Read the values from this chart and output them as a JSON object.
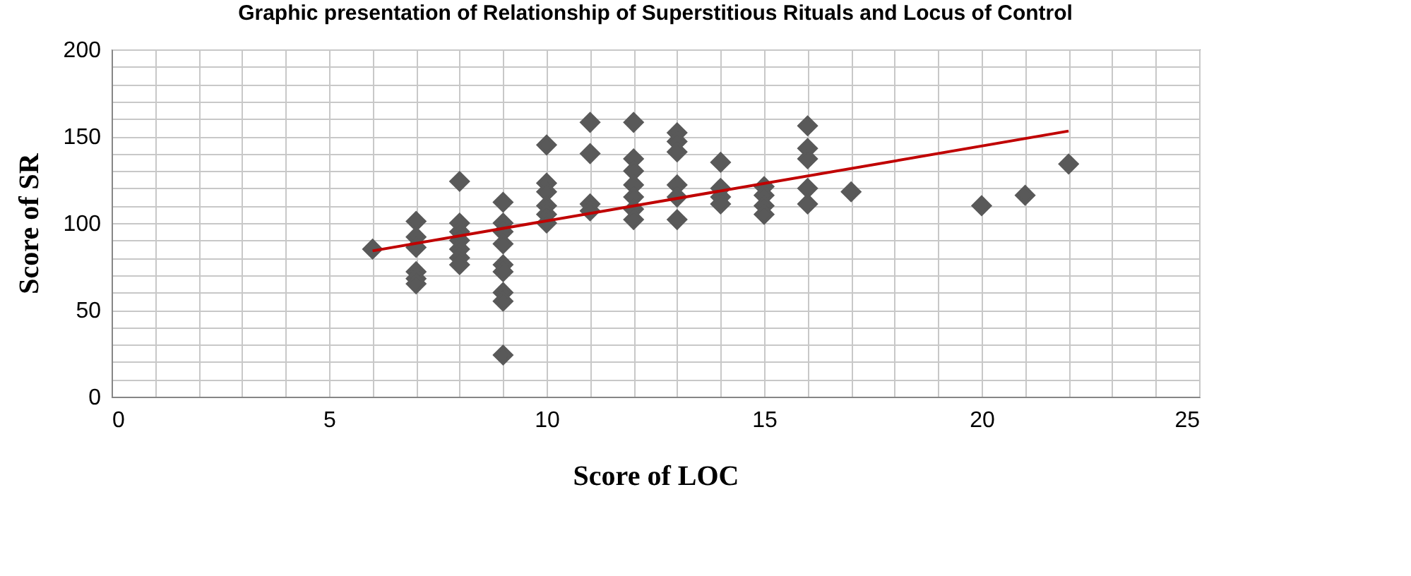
{
  "chart_data": {
    "type": "scatter",
    "title": "Graphic presentation of Relationship of Superstitious Rituals and Locus of Control",
    "xlabel": "Score of LOC",
    "ylabel": "Score of SR",
    "grid": true,
    "xlim": [
      0,
      25
    ],
    "ylim": [
      0,
      200
    ],
    "xticks": [
      0,
      {
        "value": 1,
        "label": null
      },
      {
        "value": 2,
        "label": null
      },
      {
        "value": 3,
        "label": null
      },
      {
        "value": 4,
        "label": null
      },
      5,
      {
        "value": 6,
        "label": null
      },
      {
        "value": 7,
        "label": null
      },
      {
        "value": 8,
        "label": null
      },
      {
        "value": 9,
        "label": null
      },
      10,
      {
        "value": 11,
        "label": null
      },
      {
        "value": 12,
        "label": null
      },
      {
        "value": 13,
        "label": null
      },
      {
        "value": 14,
        "label": null
      },
      15,
      {
        "value": 16,
        "label": null
      },
      {
        "value": 17,
        "label": null
      },
      {
        "value": 18,
        "label": null
      },
      {
        "value": 19,
        "label": null
      },
      20,
      {
        "value": 21,
        "label": null
      },
      {
        "value": 22,
        "label": null
      },
      {
        "value": 23,
        "label": null
      },
      {
        "value": 24,
        "label": null
      },
      25
    ],
    "yticks": [
      0,
      {
        "value": 10,
        "label": null
      },
      {
        "value": 20,
        "label": null
      },
      {
        "value": 30,
        "label": null
      },
      {
        "value": 40,
        "label": null
      },
      50,
      {
        "value": 60,
        "label": null
      },
      {
        "value": 70,
        "label": null
      },
      {
        "value": 80,
        "label": null
      },
      {
        "value": 90,
        "label": null
      },
      100,
      {
        "value": 110,
        "label": null
      },
      {
        "value": 120,
        "label": null
      },
      {
        "value": 130,
        "label": null
      },
      {
        "value": 140,
        "label": null
      },
      150,
      {
        "value": 160,
        "label": null
      },
      {
        "value": 170,
        "label": null
      },
      {
        "value": 180,
        "label": null
      },
      {
        "value": 190,
        "label": null
      },
      200
    ],
    "series": [
      {
        "marker": "diamond",
        "color": "#595959",
        "x": [
          6,
          7,
          7,
          7,
          7,
          7,
          7,
          8,
          8,
          8,
          8,
          8,
          8,
          8,
          9,
          9,
          9,
          9,
          9,
          9,
          9,
          9,
          9,
          10,
          10,
          10,
          10,
          10,
          10,
          11,
          11,
          11,
          11,
          12,
          12,
          12,
          12,
          12,
          12,
          12,
          13,
          13,
          13,
          13,
          13,
          13,
          14,
          14,
          14,
          14,
          15,
          15,
          15,
          15,
          16,
          16,
          16,
          16,
          16,
          17,
          20,
          21,
          22
        ],
        "values": [
          85,
          101,
          92,
          86,
          72,
          68,
          65,
          124,
          100,
          95,
          90,
          85,
          80,
          76,
          112,
          100,
          95,
          88,
          76,
          72,
          60,
          55,
          24,
          145,
          123,
          118,
          110,
          105,
          100,
          158,
          140,
          111,
          107,
          158,
          137,
          130,
          122,
          115,
          108,
          102,
          152,
          147,
          141,
          122,
          115,
          102,
          135,
          120,
          115,
          111,
          121,
          116,
          110,
          105,
          156,
          143,
          137,
          120,
          111,
          118,
          110,
          116,
          134
        ]
      },
      {
        "type": "line",
        "color": "#c00000",
        "x": [
          6,
          22
        ],
        "values": [
          84,
          153
        ]
      }
    ]
  }
}
